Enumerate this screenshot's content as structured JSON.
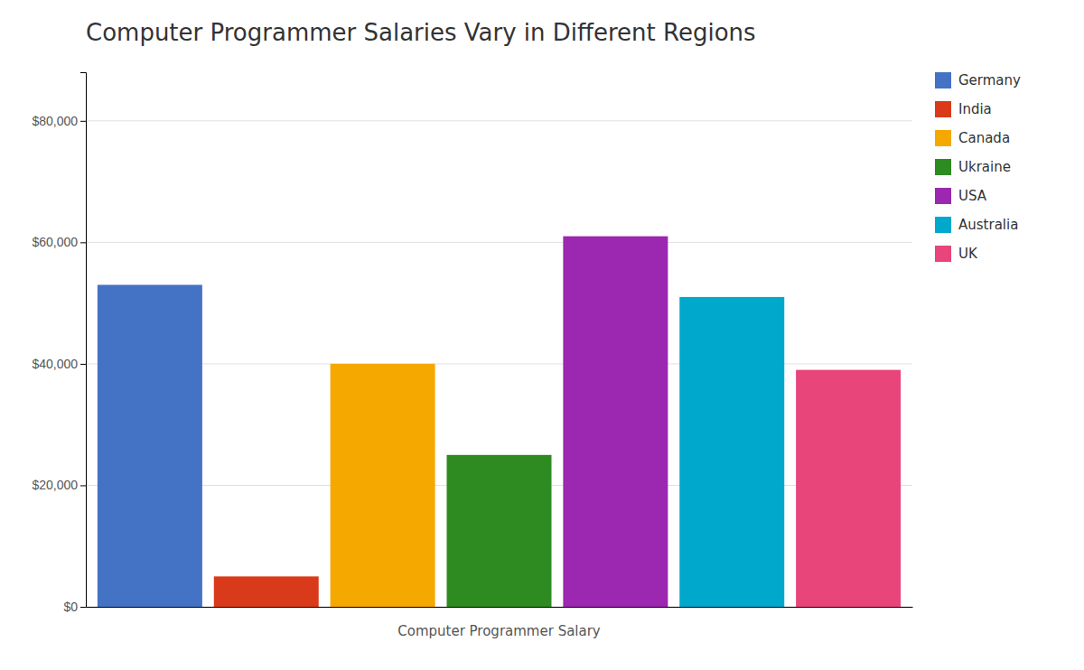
{
  "chart_data": {
    "type": "bar",
    "title": "Computer Programmer Salaries Vary in Different Regions",
    "xlabel": "Computer Programmer Salary",
    "categories": [
      "Germany",
      "India",
      "Canada",
      "Ukraine",
      "USA",
      "Australia",
      "UK"
    ],
    "values": [
      53000,
      5000,
      40000,
      25000,
      61000,
      51000,
      39000
    ],
    "colors": [
      "#4472C4",
      "#D93B1A",
      "#F5A800",
      "#2E8B22",
      "#9C27B0",
      "#00A8CC",
      "#E8457A"
    ],
    "ylim": [
      0,
      88000
    ],
    "yticks": [
      {
        "value": 0,
        "label": "$0"
      },
      {
        "value": 20000,
        "label": "$20,000"
      },
      {
        "value": 40000,
        "label": "$40,000"
      },
      {
        "value": 60000,
        "label": "$60,000"
      },
      {
        "value": 80000,
        "label": "$80,000"
      }
    ],
    "grid": true,
    "legend": "right"
  }
}
